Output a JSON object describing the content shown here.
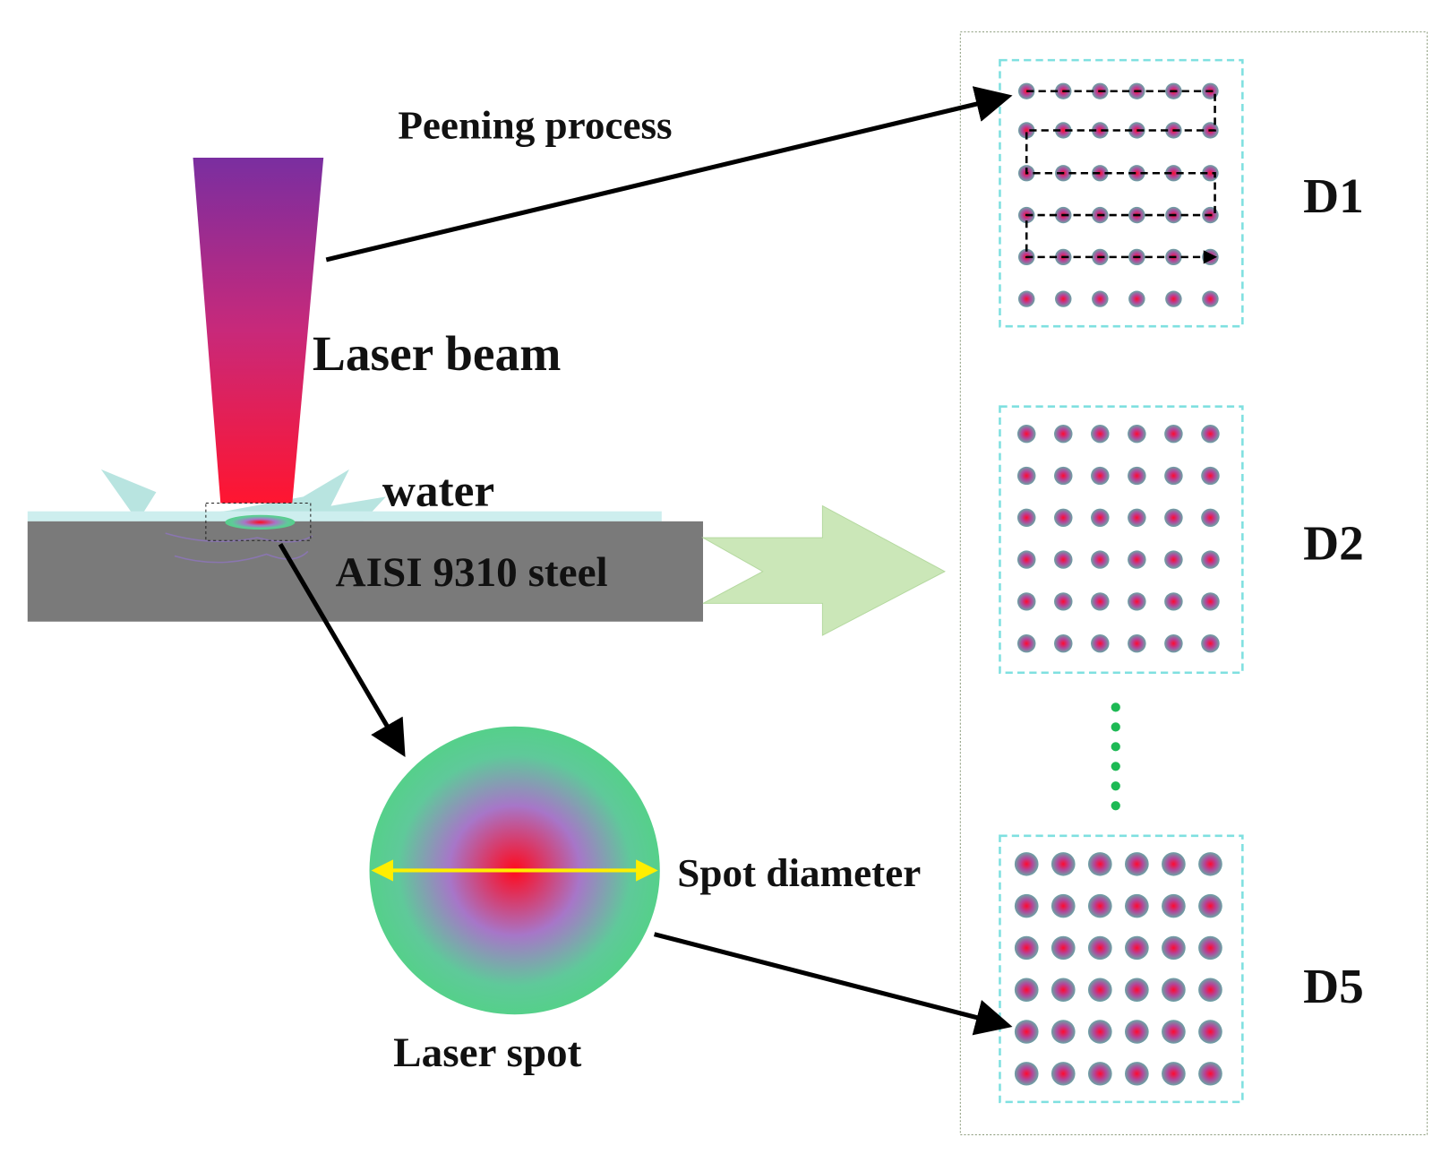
{
  "labels": {
    "peening_process": "Peening process",
    "laser_beam": "Laser beam",
    "water": "water",
    "steel": "AISI 9310 steel",
    "spot_diameter": "Spot diameter",
    "laser_spot": "Laser spot"
  },
  "panels": [
    {
      "label": "D1"
    },
    {
      "label": "D2"
    },
    {
      "label": "D5"
    }
  ]
}
